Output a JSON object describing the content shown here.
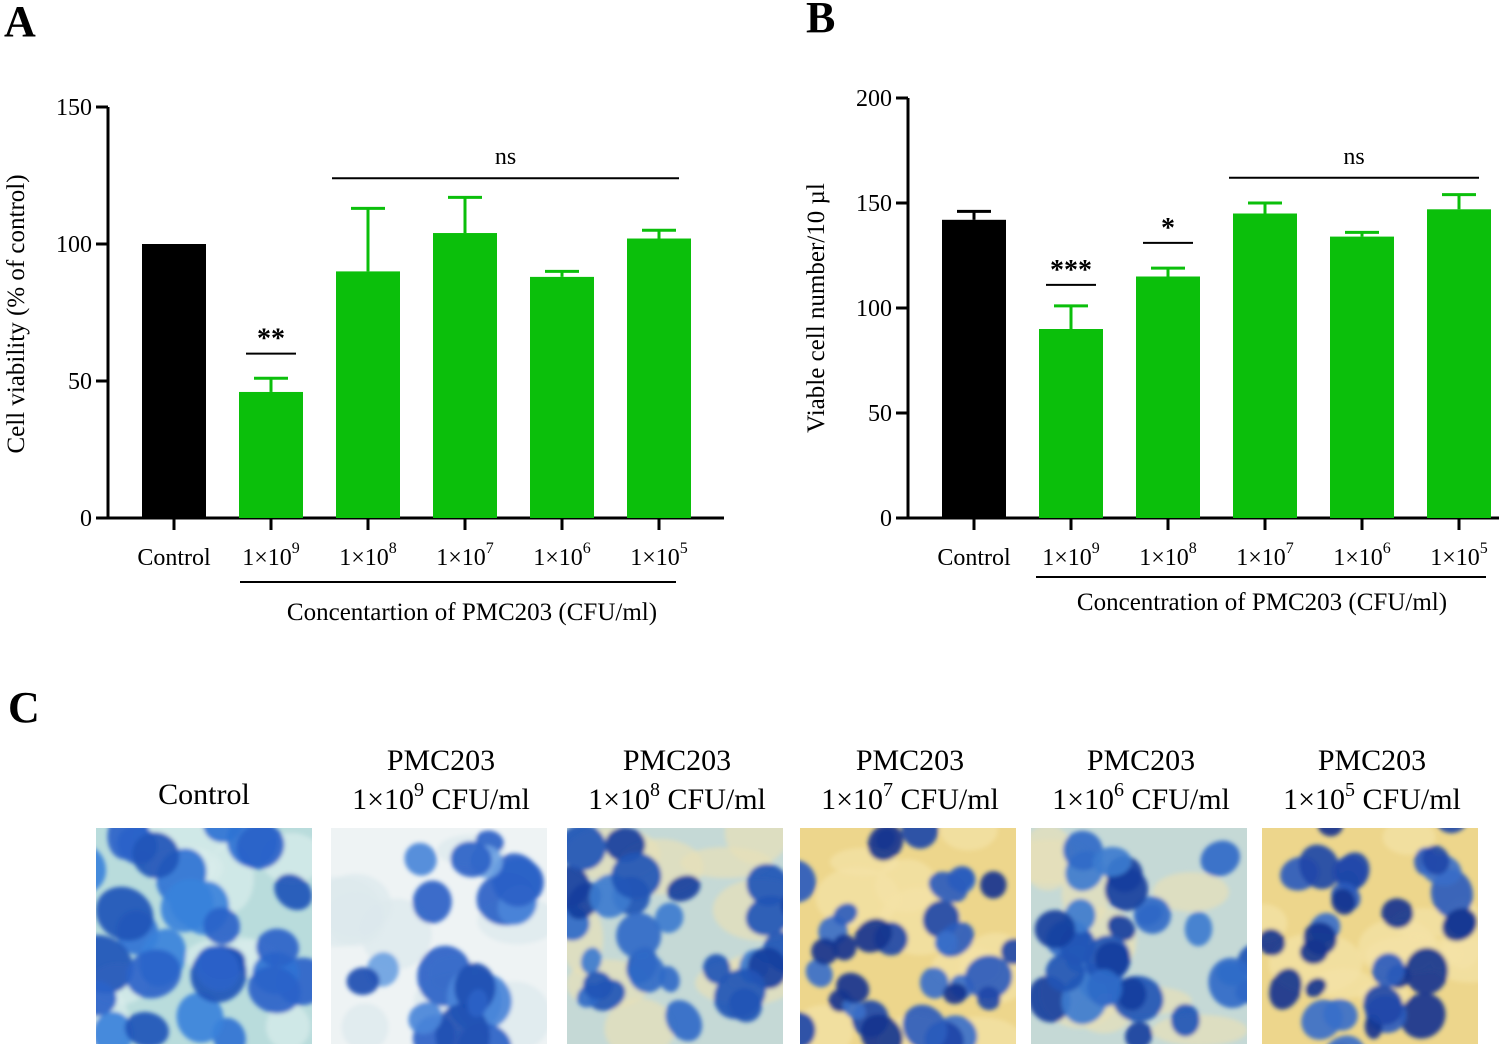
{
  "colors": {
    "control": "#000000",
    "treated": "#0bbf0b"
  },
  "panels": {
    "A": {
      "letter": "A",
      "chart_data": {
        "type": "bar",
        "categories": [
          "Control",
          "1×10",
          "1×10",
          "1×10",
          "1×10",
          "1×10"
        ],
        "category_exponents": [
          "",
          "9",
          "8",
          "7",
          "6",
          "5"
        ],
        "values": [
          100,
          46,
          90,
          104,
          88,
          102
        ],
        "errors": [
          0,
          5,
          23,
          13,
          2,
          3
        ],
        "ylabel": "Cell viability (% of control)",
        "xlabel": "Concentartion of PMC203 (CFU/ml)",
        "ylim": [
          0,
          150
        ],
        "yticks": [
          0,
          50,
          100,
          150
        ],
        "significance": [
          {
            "from": 1,
            "to": 1,
            "label": "**",
            "y": 60
          },
          {
            "from": 2,
            "to": 5,
            "label": "ns",
            "y": 124
          }
        ]
      }
    },
    "B": {
      "letter": "B",
      "chart_data": {
        "type": "bar",
        "categories": [
          "Control",
          "1×10",
          "1×10",
          "1×10",
          "1×10",
          "1×10"
        ],
        "category_exponents": [
          "",
          "9",
          "8",
          "7",
          "6",
          "5"
        ],
        "values": [
          142,
          90,
          115,
          145,
          134,
          147
        ],
        "errors": [
          4,
          11,
          4,
          5,
          2,
          7
        ],
        "ylabel": "Viable cell number/10 µl",
        "xlabel": "Concentration of PMC203 (CFU/ml)",
        "ylim": [
          0,
          200
        ],
        "yticks": [
          0,
          50,
          100,
          150,
          200
        ],
        "significance": [
          {
            "from": 1,
            "to": 1,
            "label": "***",
            "y": 111
          },
          {
            "from": 2,
            "to": 2,
            "label": "*",
            "y": 131
          },
          {
            "from": 3,
            "to": 5,
            "label": "ns",
            "y": 162
          }
        ]
      }
    }
  },
  "panel_c": {
    "letter": "C",
    "images": [
      {
        "line1": "Control",
        "line2": "",
        "base": "",
        "exp": "",
        "unit": "",
        "palette": "control"
      },
      {
        "line1": "PMC203",
        "base": "1×10",
        "exp": "9",
        "unit": " CFU/ml",
        "palette": "pale"
      },
      {
        "line1": "PMC203",
        "base": "1×10",
        "exp": "8",
        "unit": " CFU/ml",
        "palette": "mixed"
      },
      {
        "line1": "PMC203",
        "base": "1×10",
        "exp": "7",
        "unit": " CFU/ml",
        "palette": "yellow"
      },
      {
        "line1": "PMC203",
        "base": "1×10",
        "exp": "6",
        "unit": " CFU/ml",
        "palette": "mixed"
      },
      {
        "line1": "PMC203",
        "base": "1×10",
        "exp": "5",
        "unit": " CFU/ml",
        "palette": "yellow"
      }
    ]
  }
}
